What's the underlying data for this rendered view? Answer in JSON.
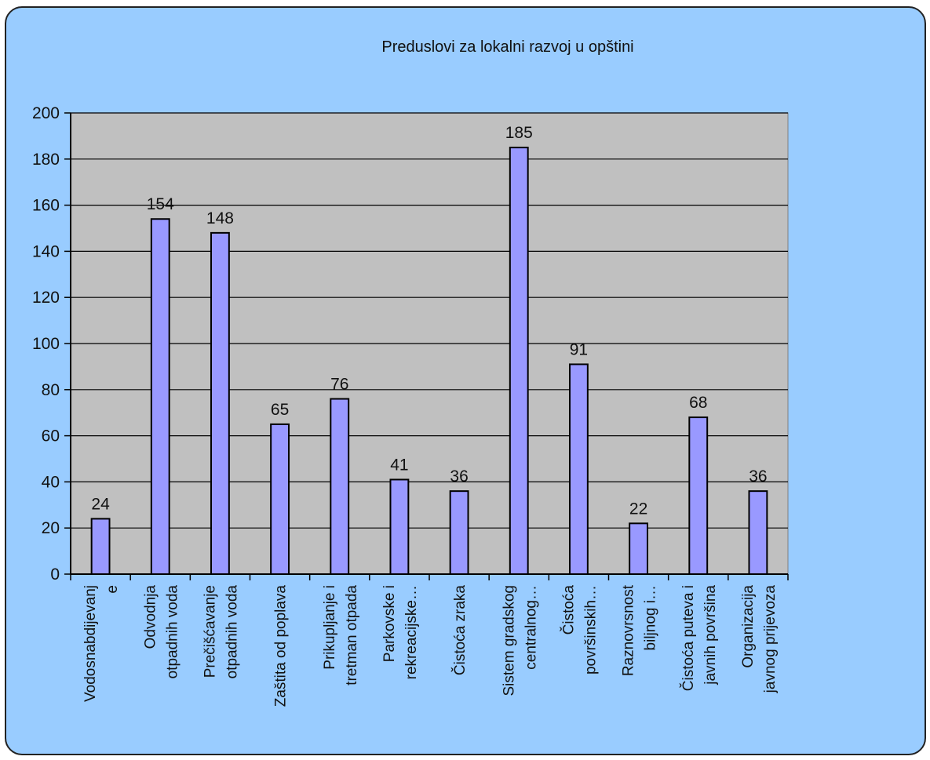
{
  "chart_data": {
    "type": "bar",
    "title": "Preduslovi za lokalni razvoj u opštini",
    "xlabel": "",
    "ylabel": "",
    "ylim": [
      0,
      200
    ],
    "yticks": [
      0,
      20,
      40,
      60,
      80,
      100,
      120,
      140,
      160,
      180,
      200
    ],
    "grid": true,
    "legend": "none",
    "categories": [
      [
        "Vodosnabdijevanj",
        "e"
      ],
      [
        "Odvodnja",
        "otpadnih voda"
      ],
      [
        "Prečišćavanje",
        "otpadnih voda"
      ],
      [
        "Zaštita od poplava"
      ],
      [
        "Prikupljanje i",
        "tretman otpada"
      ],
      [
        "Parkovske i",
        "rekreacijske…"
      ],
      [
        "Čistoća zraka"
      ],
      [
        "Sistem gradskog",
        "centralnog…"
      ],
      [
        "Čistoća",
        "površinskih…"
      ],
      [
        "Raznovrsnost",
        "biljnog i…"
      ],
      [
        "Čistoća puteva i",
        "javnih površina"
      ],
      [
        "Organizacija",
        "javnog prijevoza"
      ]
    ],
    "values": [
      24,
      154,
      148,
      65,
      76,
      41,
      36,
      185,
      91,
      22,
      68,
      36
    ],
    "colors": {
      "background": "#99ccff",
      "plot_area": "#c0c0c0",
      "bar_fill": "#9999ff",
      "bar_stroke": "#000000",
      "gridline": "#000000"
    }
  }
}
